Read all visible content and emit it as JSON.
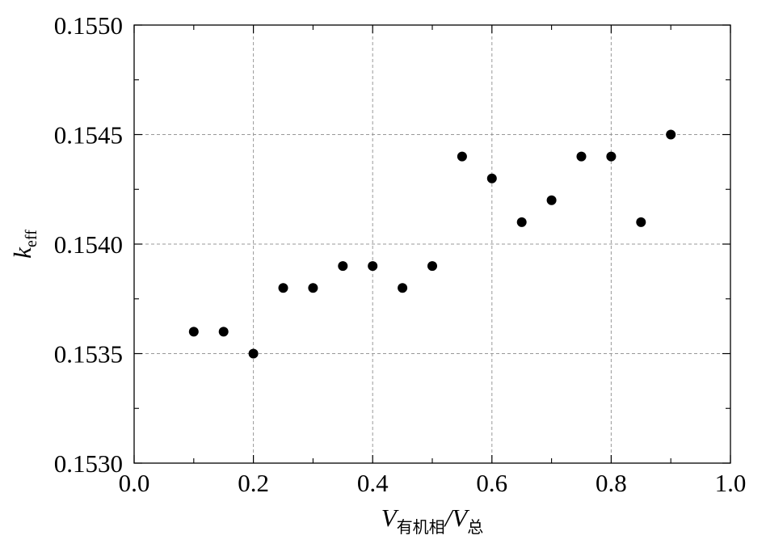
{
  "chart_data": {
    "type": "scatter",
    "title": "",
    "xlabel": {
      "var": "V",
      "var_sub": "有机相",
      "sep": "/",
      "denom": "V",
      "denom_sub": "总"
    },
    "ylabel": {
      "var": "k",
      "sub": "eff"
    },
    "xlim": [
      0.0,
      1.0
    ],
    "ylim": [
      0.153,
      0.155
    ],
    "x_ticks": [
      0.0,
      0.2,
      0.4,
      0.6,
      0.8,
      1.0
    ],
    "x_tick_labels": [
      "0.0",
      "0.2",
      "0.4",
      "0.6",
      "0.8",
      "1.0"
    ],
    "y_ticks": [
      0.153,
      0.1535,
      0.154,
      0.1545,
      0.155
    ],
    "y_tick_labels": [
      "0.1530",
      "0.1535",
      "0.1540",
      "0.1545",
      "0.1550"
    ],
    "grid": true,
    "marker_color": "#000000",
    "grid_color": "#999999",
    "series": [
      {
        "x": [
          0.1,
          0.15,
          0.2,
          0.25,
          0.3,
          0.35,
          0.4,
          0.45,
          0.5,
          0.55,
          0.6,
          0.65,
          0.7,
          0.75,
          0.8,
          0.85,
          0.9
        ],
        "y": [
          0.1536,
          0.1536,
          0.1535,
          0.1538,
          0.1538,
          0.1539,
          0.1539,
          0.1538,
          0.1539,
          0.1544,
          0.1543,
          0.1541,
          0.1542,
          0.1544,
          0.1544,
          0.1541,
          0.1545
        ]
      }
    ]
  }
}
